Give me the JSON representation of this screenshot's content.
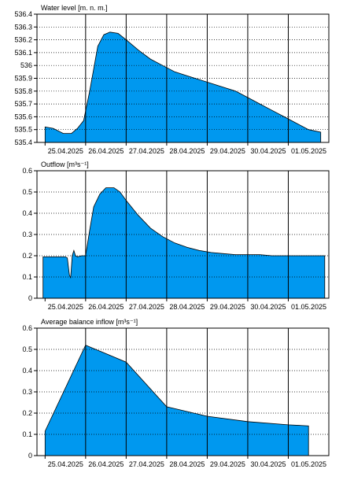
{
  "chart_data": [
    {
      "type": "area",
      "title": "Water level [m. n. m.]",
      "ylim": [
        535.4,
        536.4
      ],
      "yticks": [
        535.4,
        535.5,
        535.6,
        535.7,
        535.8,
        535.9,
        536,
        536.1,
        536.2,
        536.3,
        536.4
      ],
      "ytick_labels": [
        "535.4",
        "535.5",
        "535.6",
        "535.7",
        "535.8",
        "535.9",
        "536",
        "536.1",
        "536.2",
        "536.3",
        "536.4"
      ],
      "xlim": [
        -0.2,
        7.0
      ],
      "xtick_labels": [
        "25.04.2025",
        "26.04.2025",
        "27.04.2025",
        "28.04.2025",
        "29.04.2025",
        "30.04.2025",
        "01.05.2025"
      ],
      "fill_color": "#0098ef",
      "x": [
        0,
        0.2,
        0.45,
        0.65,
        0.8,
        0.95,
        1.1,
        1.3,
        1.45,
        1.6,
        1.8,
        2.0,
        2.3,
        2.6,
        2.9,
        3.2,
        3.5,
        3.8,
        4.1,
        4.4,
        4.7,
        5.0,
        5.3,
        5.6,
        5.9,
        6.2,
        6.5,
        6.8
      ],
      "y": [
        535.52,
        535.51,
        535.47,
        535.47,
        535.51,
        535.57,
        535.8,
        536.15,
        536.24,
        536.26,
        536.25,
        536.2,
        536.12,
        536.05,
        536.0,
        535.95,
        535.92,
        535.89,
        535.86,
        535.83,
        535.8,
        535.75,
        535.7,
        535.65,
        535.6,
        535.55,
        535.5,
        535.48
      ]
    },
    {
      "type": "area",
      "title": "Outflow [m³s⁻¹]",
      "ylim": [
        0,
        0.6
      ],
      "yticks": [
        0,
        0.1,
        0.2,
        0.3,
        0.4,
        0.5,
        0.6
      ],
      "ytick_labels": [
        "0",
        "0.1",
        "0.2",
        "0.3",
        "0.4",
        "0.5",
        "0.6"
      ],
      "xlim": [
        -0.2,
        7.0
      ],
      "xtick_labels": [
        "25.04.2025",
        "26.04.2025",
        "27.04.2025",
        "28.04.2025",
        "29.04.2025",
        "30.04.2025",
        "01.05.2025"
      ],
      "fill_color": "#0098ef",
      "x": [
        -0.05,
        0.5,
        0.55,
        0.6,
        0.63,
        0.67,
        0.71,
        0.75,
        0.8,
        0.9,
        1.0,
        1.1,
        1.2,
        1.35,
        1.5,
        1.7,
        1.85,
        2.0,
        2.3,
        2.6,
        2.9,
        3.2,
        3.5,
        3.8,
        4.1,
        4.4,
        4.7,
        5.0,
        5.3,
        5.6,
        5.9,
        6.2,
        6.5,
        6.9
      ],
      "y": [
        0.195,
        0.195,
        0.19,
        0.11,
        0.095,
        0.2,
        0.225,
        0.2,
        0.195,
        0.2,
        0.2,
        0.32,
        0.43,
        0.49,
        0.52,
        0.52,
        0.5,
        0.46,
        0.39,
        0.33,
        0.29,
        0.26,
        0.24,
        0.225,
        0.215,
        0.21,
        0.205,
        0.205,
        0.205,
        0.2,
        0.2,
        0.2,
        0.2,
        0.2
      ]
    },
    {
      "type": "area",
      "title": "Average balance inflow  [m³s⁻¹]",
      "ylim": [
        0,
        0.6
      ],
      "yticks": [
        0,
        0.1,
        0.2,
        0.3,
        0.4,
        0.5,
        0.6
      ],
      "ytick_labels": [
        "0",
        "0.1",
        "0.2",
        "0.3",
        "0.4",
        "0.5",
        "0.6"
      ],
      "xlim": [
        -0.2,
        7.0
      ],
      "xtick_labels": [
        "25.04.2025",
        "26.04.2025",
        "27.04.2025",
        "28.04.2025",
        "29.04.2025",
        "30.04.2025",
        "01.05.2025"
      ],
      "fill_color": "#0098ef",
      "x": [
        0,
        1,
        2,
        3,
        4,
        5,
        6.0,
        6.5
      ],
      "y": [
        0.115,
        0.52,
        0.44,
        0.23,
        0.185,
        0.16,
        0.145,
        0.14
      ]
    }
  ]
}
